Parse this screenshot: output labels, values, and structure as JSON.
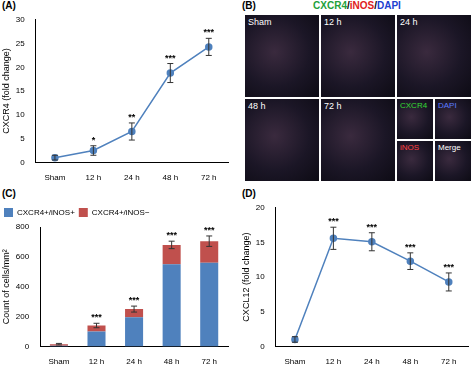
{
  "chart_data": [
    {
      "type": "line",
      "title": "(A)",
      "categories": [
        "Sham",
        "12 h",
        "24 h",
        "48 h",
        "72 h"
      ],
      "y_label": "CXCR4 (fold change)",
      "series": [
        {
          "color": "#4f81bd",
          "marker": "circle",
          "values": [
            1,
            2.5,
            6.5,
            18.8,
            24.3
          ],
          "errors": [
            0.5,
            1,
            1.8,
            2,
            1.8
          ]
        }
      ],
      "significance": [
        null,
        "*",
        "**",
        "***",
        "***"
      ],
      "ylim": [
        0,
        30
      ],
      "yticks": [
        0,
        5,
        10,
        15,
        20,
        25,
        30
      ],
      "grid": false
    },
    {
      "type": "bar",
      "title": "(C)",
      "categories": [
        "Sham",
        "12 h",
        "24 h",
        "48 h",
        "72 h"
      ],
      "y_label": "Count of cells/mm²",
      "stacked": true,
      "legend": "top-left",
      "series": [
        {
          "name": "CXCR4+/iNOS+",
          "color": "#4f81bd",
          "values": [
            5,
            100,
            195,
            550,
            560
          ]
        },
        {
          "name": "CXCR4+/iNOS−",
          "color": "#c0504d",
          "values": [
            10,
            40,
            55,
            130,
            145
          ],
          "errors": [
            5,
            15,
            20,
            25,
            35
          ]
        }
      ],
      "significance": [
        null,
        "***",
        "***",
        "***",
        "***"
      ],
      "ylim": [
        0,
        800
      ],
      "yticks": [
        0,
        200,
        400,
        600,
        800
      ],
      "grid": false
    },
    {
      "type": "line",
      "title": "(D)",
      "categories": [
        "Sham",
        "12 h",
        "24 h",
        "48 h",
        "72 h"
      ],
      "y_label": "CXCL12 (fold change)",
      "series": [
        {
          "color": "#4f81bd",
          "marker": "circle",
          "values": [
            1,
            15.6,
            15.1,
            12.3,
            9.3
          ],
          "errors": [
            0.4,
            1.6,
            1.3,
            1.2,
            1.3
          ]
        }
      ],
      "significance": [
        null,
        "***",
        "***",
        "***",
        "***"
      ],
      "ylim": [
        0,
        20
      ],
      "yticks": [
        0,
        5,
        10,
        15,
        20
      ],
      "grid": false
    }
  ],
  "image_panel": {
    "label": "(B)",
    "title_parts": [
      {
        "text": "CXCR4",
        "color": "#22a13a"
      },
      {
        "text": "/",
        "color": "#000000"
      },
      {
        "text": "iNOS",
        "color": "#e02020"
      },
      {
        "text": "/",
        "color": "#000000"
      },
      {
        "text": "DAPI",
        "color": "#2040d0"
      }
    ],
    "frames": [
      "Sham",
      "12 h",
      "24 h",
      "48 h",
      "72 h"
    ],
    "channels": [
      {
        "text": "CXCR4",
        "color": "#33dd33"
      },
      {
        "text": "DAPI",
        "color": "#5a7bff"
      },
      {
        "text": "iNOS",
        "color": "#ff4040"
      },
      {
        "text": "Merge",
        "color": "#ffffff"
      }
    ]
  }
}
